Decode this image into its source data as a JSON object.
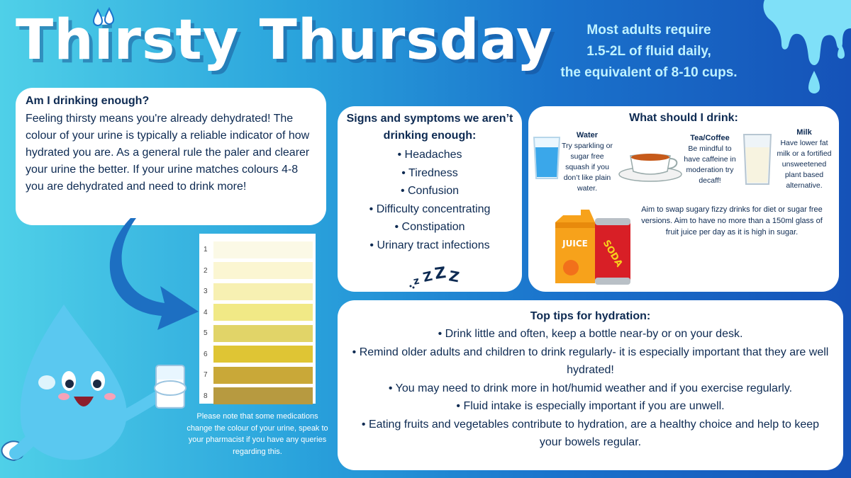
{
  "title": "Thirsty Thursday",
  "fluid_note": [
    "Most adults require",
    "1.5-2L of fluid daily,",
    "the equivalent of 8-10 cups."
  ],
  "intro": {
    "heading": "Am I drinking enough?",
    "body": "Feeling thirsty means you're already dehydrated! The colour of your urine is typically a reliable indicator of how hydrated you are. As a general rule the paler and clearer your urine the better. If your urine matches colours 4-8 you are dehydrated and need to drink more!"
  },
  "signs": {
    "heading": "Signs and symptoms we aren’t drinking enough:",
    "items": [
      "• Headaches",
      "• Tiredness",
      "• Confusion",
      "• Difficulty concentrating",
      "• Constipation",
      "• Urinary tract infections"
    ],
    "zzz_text": "Z Z Z"
  },
  "drink": {
    "heading": "What should I drink:",
    "water_title": "Water",
    "water_text": "Try sparkling or sugar free squash if you don’t like plain water.",
    "tea_title": "Tea/Coffee",
    "tea_text": "Be mindful to have caffeine in moderation try decaff!",
    "milk_title": "Milk",
    "milk_text": "Have lower fat milk or a fortified unsweetened plant based alternative.",
    "juice_label": "JUICE",
    "soda_label": "SODA",
    "swap_text": "Aim to swap sugary fizzy drinks for diet or sugar free versions. Aim to have no more than a 150ml glass of fruit juice per day as it is high in sugar."
  },
  "tips": {
    "heading": "Top tips for hydration:",
    "items": [
      "• Drink little and often, keep a bottle near-by or on your desk.",
      "• Remind older adults and children to drink regularly- it is especially important that they are well hydrated!",
      "• You may need to drink more in hot/humid weather and if you exercise regularly.",
      "• Fluid intake is especially important if you are unwell.",
      "• Eating fruits and vegetables contribute to hydration, are a healthy choice and help to keep your bowels regular."
    ]
  },
  "urine_chart": {
    "levels": [
      {
        "label": "1",
        "color": "#fbf9e6"
      },
      {
        "label": "2",
        "color": "#fbf6d2"
      },
      {
        "label": "3",
        "color": "#f7f0b2"
      },
      {
        "label": "4",
        "color": "#f1e986"
      },
      {
        "label": "5",
        "color": "#e1d468"
      },
      {
        "label": "6",
        "color": "#dfc534"
      },
      {
        "label": "7",
        "color": "#c9a838"
      },
      {
        "label": "8",
        "color": "#b79a40"
      }
    ]
  },
  "medication_note": "Please note that some medications change the colour of your urine, speak to your pharmacist if you have any queries regarding this.",
  "colors": {
    "accent_dark": "#0d2a52",
    "water_blue": "#5ac8f0",
    "arrow_blue": "#1d6fc2"
  }
}
